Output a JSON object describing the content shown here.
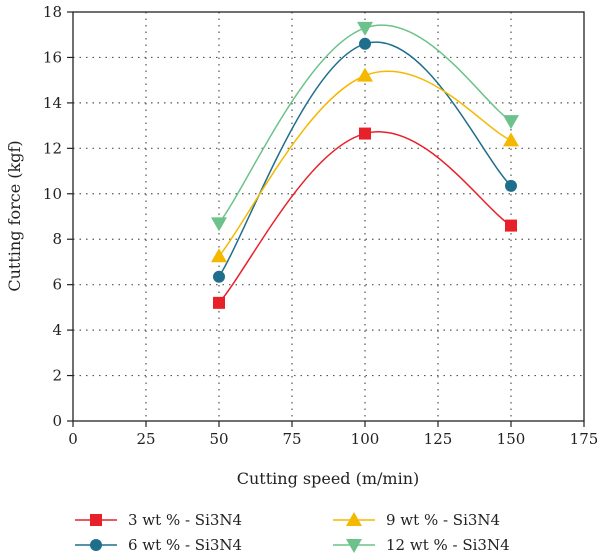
{
  "chart_data": {
    "type": "line",
    "xlabel": "Cutting speed (m/min)",
    "ylabel": "Cutting force (kgf)",
    "xlim": [
      0,
      175
    ],
    "ylim": [
      0,
      18
    ],
    "x_ticks": [
      0,
      25,
      50,
      75,
      100,
      125,
      150,
      175
    ],
    "y_ticks": [
      0,
      2,
      4,
      6,
      8,
      10,
      12,
      14,
      16,
      18
    ],
    "grid": "dotted",
    "legend_position": "bottom",
    "x": [
      50,
      100,
      150
    ],
    "series": [
      {
        "name": "3 wt % - Si3N4",
        "values": [
          5.2,
          12.65,
          8.6
        ],
        "color": "#e8202a",
        "marker": "square"
      },
      {
        "name": "6 wt % - Si3N4",
        "values": [
          6.35,
          16.6,
          10.35
        ],
        "color": "#1f6e8c",
        "marker": "circle"
      },
      {
        "name": "9 wt % - Si3N4",
        "values": [
          7.25,
          15.2,
          12.35
        ],
        "color": "#f5b800",
        "marker": "triangle-up"
      },
      {
        "name": "12 wt % - Si3N4",
        "values": [
          8.7,
          17.3,
          13.2
        ],
        "color": "#6cc28a",
        "marker": "triangle-down"
      }
    ]
  }
}
